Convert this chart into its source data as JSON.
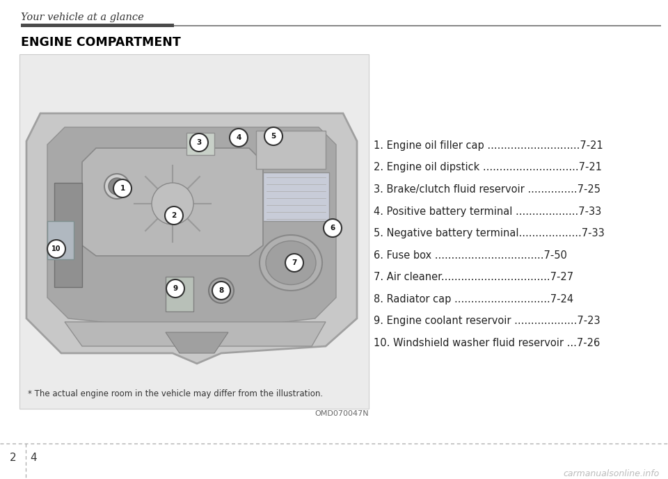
{
  "page_title": "Your vehicle at a glance",
  "section_title": "ENGINE COMPARTMENT",
  "image_code": "OMD070047N",
  "footnote": "* The actual engine room in the vehicle may differ from the illustration.",
  "watermark": "carmanualsonline.info",
  "items": [
    {
      "num": 1,
      "text": "Engine oil filler cap ",
      "dots": "............................",
      "page": "7-21"
    },
    {
      "num": 2,
      "text": "Engine oil dipstick ",
      "dots": ".............................",
      "page": "7-21"
    },
    {
      "num": 3,
      "text": "Brake/clutch fluid reservoir ",
      "dots": "...............",
      "page": "7-25"
    },
    {
      "num": 4,
      "text": "Positive battery terminal ",
      "dots": "...................",
      "page": "7-33"
    },
    {
      "num": 5,
      "text": "Negative battery terminal",
      "dots": "...................",
      "page": "7-33"
    },
    {
      "num": 6,
      "text": "Fuse box ",
      "dots": ".................................",
      "page": "7-50"
    },
    {
      "num": 7,
      "text": "Air cleaner",
      "dots": ".................................",
      "page": "7-27"
    },
    {
      "num": 8,
      "text": "Radiator cap ",
      "dots": ".............................",
      "page": "7-24"
    },
    {
      "num": 9,
      "text": "Engine coolant reservoir ",
      "dots": "...................",
      "page": "7-23"
    },
    {
      "num": 10,
      "text": "Windshield washer fluid reservoir ",
      "dots": "...",
      "page": "7-26"
    }
  ],
  "bg_color": "#ffffff",
  "box_bg_color": "#ebebeb",
  "title_bar_dark": "#4a4a4a",
  "title_bar_light": "#888888",
  "title_text_color": "#333333",
  "section_title_color": "#000000",
  "item_text_color": "#222222",
  "footnote_color": "#333333",
  "page_num_color": "#333333",
  "dotted_line_color": "#aaaaaa",
  "watermark_color": "#bbbbbb"
}
